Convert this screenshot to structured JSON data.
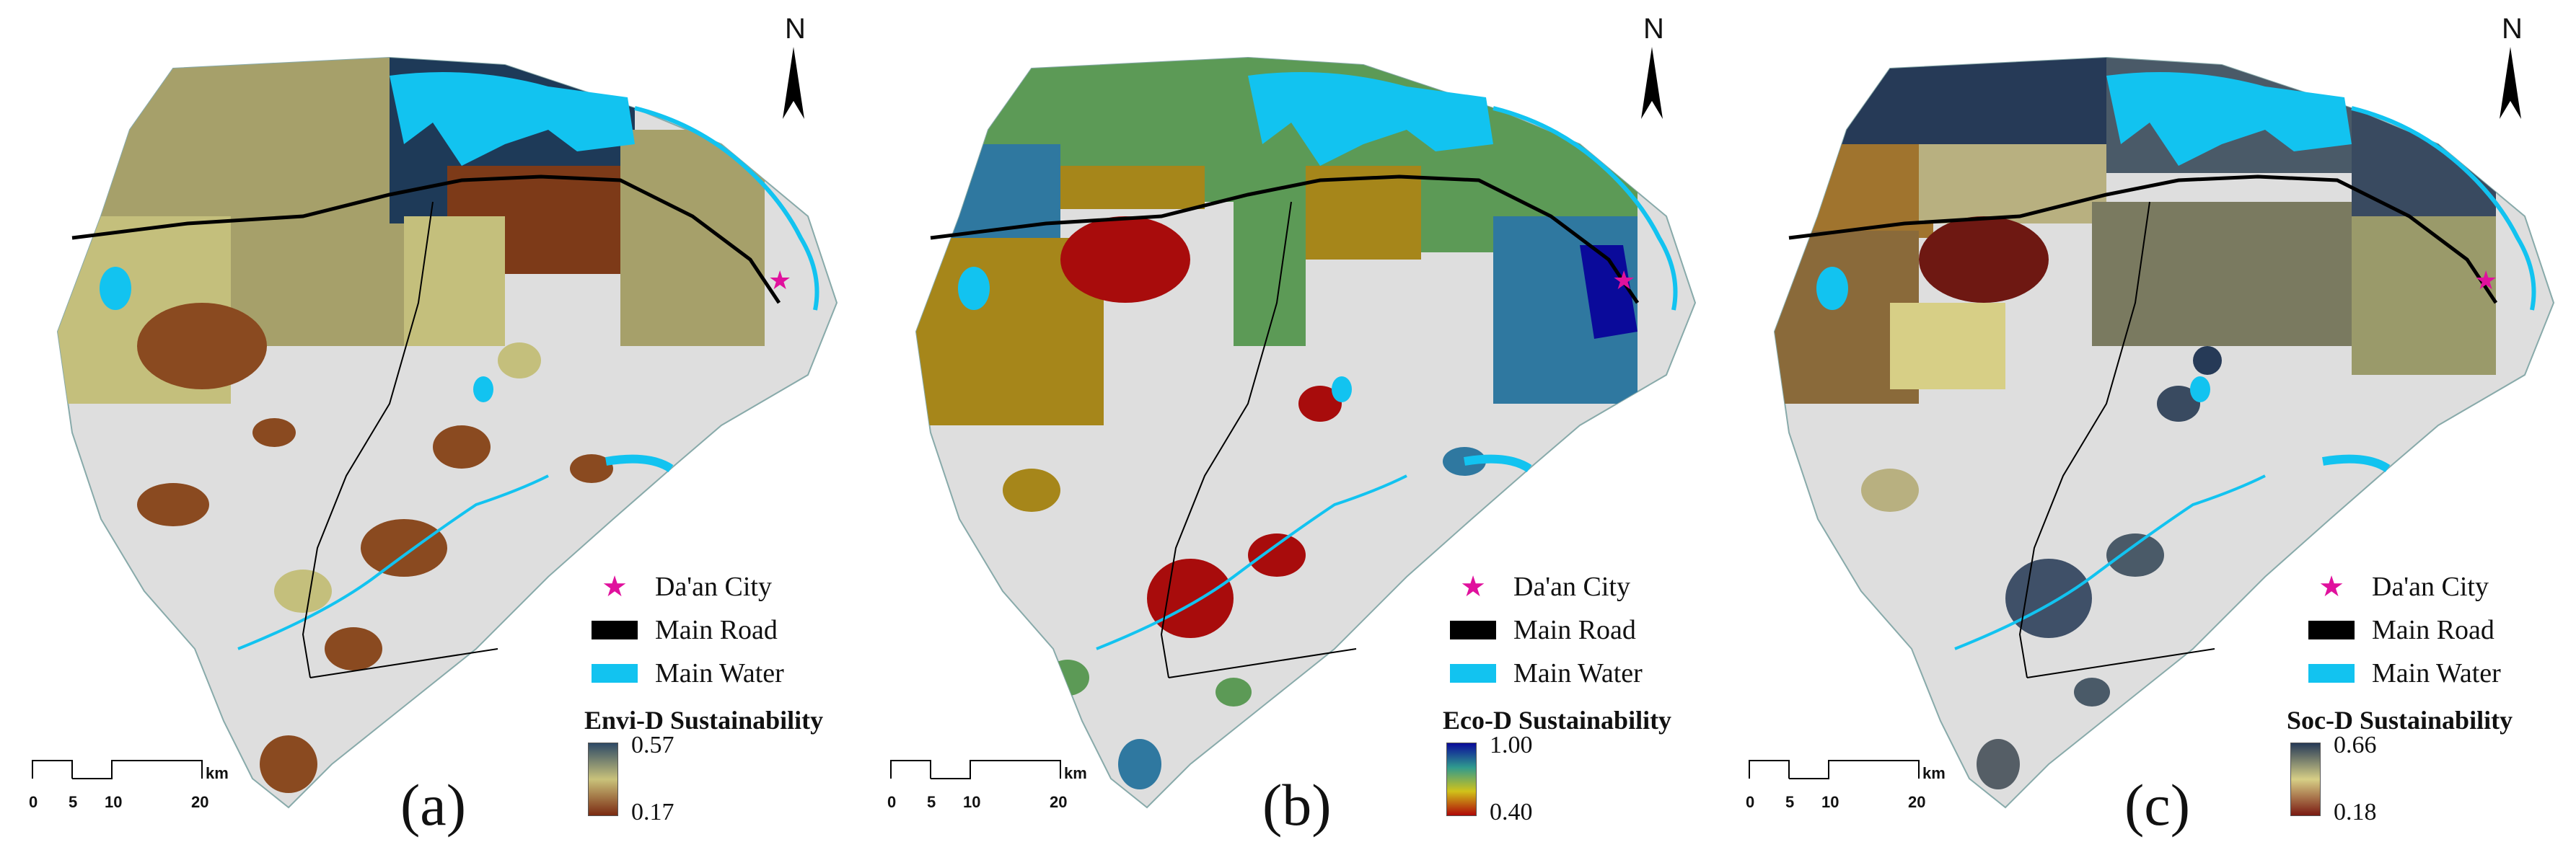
{
  "panels": [
    {
      "label": "(a)",
      "sustainability_title": "Envi-D Sustainability",
      "ramp_max": "0.57",
      "ramp_min": "0.17",
      "ramp_colors": [
        "#2e4a66",
        "#c9c27a",
        "#7b2a12"
      ]
    },
    {
      "label": "(b)",
      "sustainability_title": "Eco-D Sustainability",
      "ramp_max": "1.00",
      "ramp_min": "0.40",
      "ramp_colors": [
        "#0a0a9a",
        "#2f9a8e",
        "#d1c21a",
        "#b00808"
      ]
    },
    {
      "label": "(c)",
      "sustainability_title": "Soc-D Sustainability",
      "ramp_max": "0.66",
      "ramp_min": "0.18",
      "ramp_colors": [
        "#263a57",
        "#d7cf86",
        "#7a1a12"
      ]
    }
  ],
  "legend": {
    "city": "Da'an City",
    "road": "Main Road",
    "water": "Main Water"
  },
  "north": "N",
  "scale": {
    "unit": "km",
    "ticks": [
      "0",
      "5",
      "10",
      "20"
    ]
  },
  "colors": {
    "background_land": "#dedede",
    "water": "#12c3f0",
    "road": "#000000",
    "city_star": "#e0119d"
  }
}
